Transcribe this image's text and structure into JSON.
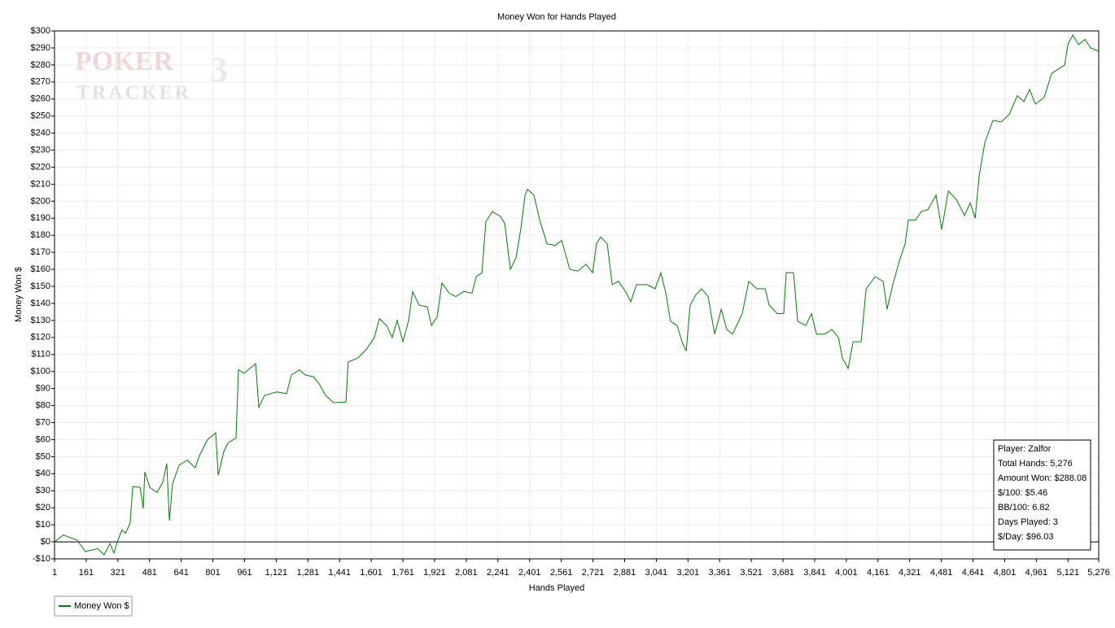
{
  "chart_data": {
    "type": "line",
    "title": "Money Won for Hands Played",
    "xlabel": "Hands Played",
    "ylabel": "Money Won $",
    "watermark": {
      "top": "POKER",
      "bottom": "TRACKER",
      "badge": "3"
    },
    "info": [
      "Player: Zalfor",
      "Total Hands: 5,276",
      "Amount Won: $288.08",
      "$/100: $5.46",
      "BB/100: 6.82",
      "Days Played: 3",
      "$/Day: $96.03"
    ],
    "grid": true,
    "xlim": [
      1,
      5276
    ],
    "ylim": [
      -10,
      300
    ],
    "xticks": [
      1,
      161,
      321,
      481,
      641,
      801,
      961,
      {
        "value": 1121,
        "label": "1,121"
      },
      {
        "value": 1281,
        "label": "1,281"
      },
      {
        "value": 1441,
        "label": "1,441"
      },
      {
        "value": 1601,
        "label": "1,601"
      },
      {
        "value": 1761,
        "label": "1,761"
      },
      {
        "value": 1921,
        "label": "1,921"
      },
      {
        "value": 2081,
        "label": "2,081"
      },
      {
        "value": 2241,
        "label": "2,241"
      },
      {
        "value": 2401,
        "label": "2,401"
      },
      {
        "value": 2561,
        "label": "2,561"
      },
      {
        "value": 2721,
        "label": "2,721"
      },
      {
        "value": 2881,
        "label": "2,881"
      },
      {
        "value": 3041,
        "label": "3,041"
      },
      {
        "value": 3201,
        "label": "3,201"
      },
      {
        "value": 3361,
        "label": "3,361"
      },
      {
        "value": 3521,
        "label": "3,521"
      },
      {
        "value": 3681,
        "label": "3,681"
      },
      {
        "value": 3841,
        "label": "3,841"
      },
      {
        "value": 4001,
        "label": "4,001"
      },
      {
        "value": 4161,
        "label": "4,161"
      },
      {
        "value": 4321,
        "label": "4,321"
      },
      {
        "value": 4481,
        "label": "4,481"
      },
      {
        "value": 4641,
        "label": "4,641"
      },
      {
        "value": 4801,
        "label": "4,801"
      },
      {
        "value": 4961,
        "label": "4,961"
      },
      {
        "value": 5121,
        "label": "5,121"
      },
      {
        "value": 5276,
        "label": "5,276"
      }
    ],
    "yticks": [
      {
        "value": -10,
        "label": "-$10"
      },
      {
        "value": 0,
        "label": "$0"
      },
      {
        "value": 10,
        "label": "$10"
      },
      {
        "value": 20,
        "label": "$20"
      },
      {
        "value": 30,
        "label": "$30"
      },
      {
        "value": 40,
        "label": "$40"
      },
      {
        "value": 50,
        "label": "$50"
      },
      {
        "value": 60,
        "label": "$60"
      },
      {
        "value": 70,
        "label": "$70"
      },
      {
        "value": 80,
        "label": "$80"
      },
      {
        "value": 90,
        "label": "$90"
      },
      {
        "value": 100,
        "label": "$100"
      },
      {
        "value": 110,
        "label": "$110"
      },
      {
        "value": 120,
        "label": "$120"
      },
      {
        "value": 130,
        "label": "$130"
      },
      {
        "value": 140,
        "label": "$140"
      },
      {
        "value": 150,
        "label": "$150"
      },
      {
        "value": 160,
        "label": "$160"
      },
      {
        "value": 170,
        "label": "$170"
      },
      {
        "value": 180,
        "label": "$180"
      },
      {
        "value": 190,
        "label": "$190"
      },
      {
        "value": 200,
        "label": "$200"
      },
      {
        "value": 210,
        "label": "$210"
      },
      {
        "value": 220,
        "label": "$220"
      },
      {
        "value": 230,
        "label": "$230"
      },
      {
        "value": 240,
        "label": "$240"
      },
      {
        "value": 250,
        "label": "$250"
      },
      {
        "value": 260,
        "label": "$260"
      },
      {
        "value": 270,
        "label": "$270"
      },
      {
        "value": 280,
        "label": "$280"
      },
      {
        "value": 290,
        "label": "$290"
      },
      {
        "value": 300,
        "label": "$300"
      }
    ],
    "x": [
      1,
      46,
      116,
      157,
      219,
      252,
      281,
      301,
      318,
      342,
      360,
      383,
      396,
      433,
      449,
      457,
      482,
      519,
      548,
      568,
      581,
      597,
      630,
      671,
      712,
      733,
      774,
      815,
      828,
      856,
      877,
      918,
      930,
      959,
      1000,
      1017,
      1033,
      1062,
      1124,
      1173,
      1198,
      1239,
      1267,
      1308,
      1337,
      1370,
      1411,
      1473,
      1485,
      1534,
      1576,
      1617,
      1642,
      1679,
      1707,
      1732,
      1761,
      1790,
      1810,
      1843,
      1884,
      1905,
      1934,
      1958,
      1995,
      2028,
      2069,
      2110,
      2131,
      2160,
      2180,
      2213,
      2254,
      2275,
      2304,
      2333,
      2357,
      2378,
      2390,
      2423,
      2452,
      2489,
      2530,
      2563,
      2604,
      2645,
      2686,
      2719,
      2739,
      2760,
      2793,
      2818,
      2850,
      2891,
      2912,
      2941,
      2994,
      3035,
      3064,
      3089,
      3113,
      3146,
      3171,
      3192,
      3212,
      3241,
      3270,
      3303,
      3336,
      3369,
      3397,
      3426,
      3459,
      3475,
      3508,
      3549,
      3591,
      3611,
      3652,
      3685,
      3697,
      3734,
      3755,
      3796,
      3825,
      3850,
      3891,
      3928,
      3961,
      3981,
      4010,
      4035,
      4076,
      4101,
      4146,
      4187,
      4207,
      4236,
      4269,
      4298,
      4314,
      4351,
      4380,
      4413,
      4454,
      4483,
      4516,
      4557,
      4598,
      4627,
      4652,
      4672,
      4701,
      4742,
      4783,
      4824,
      4865,
      4898,
      4927,
      4956,
      5001,
      5038,
      5071,
      5104,
      5120,
      5145,
      5174,
      5207,
      5235,
      5276
    ],
    "series": [
      {
        "name": "Money Won $",
        "color": "#008000",
        "values": [
          0,
          4,
          1,
          -5.7,
          -4,
          -7.6,
          -1,
          -6.6,
          0,
          7,
          5,
          11,
          32.5,
          32,
          19.6,
          41,
          32,
          29,
          35,
          46,
          12.4,
          34,
          45,
          48,
          43.5,
          50.6,
          60,
          64,
          39,
          53,
          58,
          61,
          101,
          99,
          103,
          104.6,
          79,
          86,
          88,
          87,
          98,
          101,
          98,
          97,
          93,
          86,
          81.7,
          82,
          105.6,
          108,
          113,
          120,
          131,
          127,
          120,
          130,
          117.5,
          130,
          147,
          139,
          138,
          127,
          132,
          152,
          146,
          144,
          147,
          146,
          155.7,
          158,
          188,
          194,
          191,
          187,
          160,
          167,
          184,
          203.5,
          207,
          203.5,
          189,
          175,
          174,
          177,
          160,
          159,
          163,
          158,
          175,
          179,
          175,
          151,
          153,
          146,
          141,
          151,
          151,
          148.6,
          158,
          146,
          129.5,
          127,
          117.5,
          112,
          139,
          145,
          148.6,
          144,
          122,
          136.6,
          124.7,
          122,
          130,
          134,
          153,
          148.6,
          148.6,
          139,
          134,
          134,
          158,
          158,
          129.5,
          127,
          134,
          122,
          122,
          124.7,
          120,
          108,
          101.8,
          117.5,
          117.5,
          148.6,
          155.7,
          153,
          136.6,
          151,
          165,
          175,
          189,
          189,
          194,
          195,
          203.5,
          183.4,
          206,
          201,
          191.6,
          199,
          190,
          215,
          234.5,
          247.5,
          246.5,
          251,
          262,
          258.5,
          265.6,
          257,
          261,
          275,
          277.5,
          280,
          292,
          297.6,
          292,
          295,
          290,
          288.08
        ]
      }
    ]
  }
}
